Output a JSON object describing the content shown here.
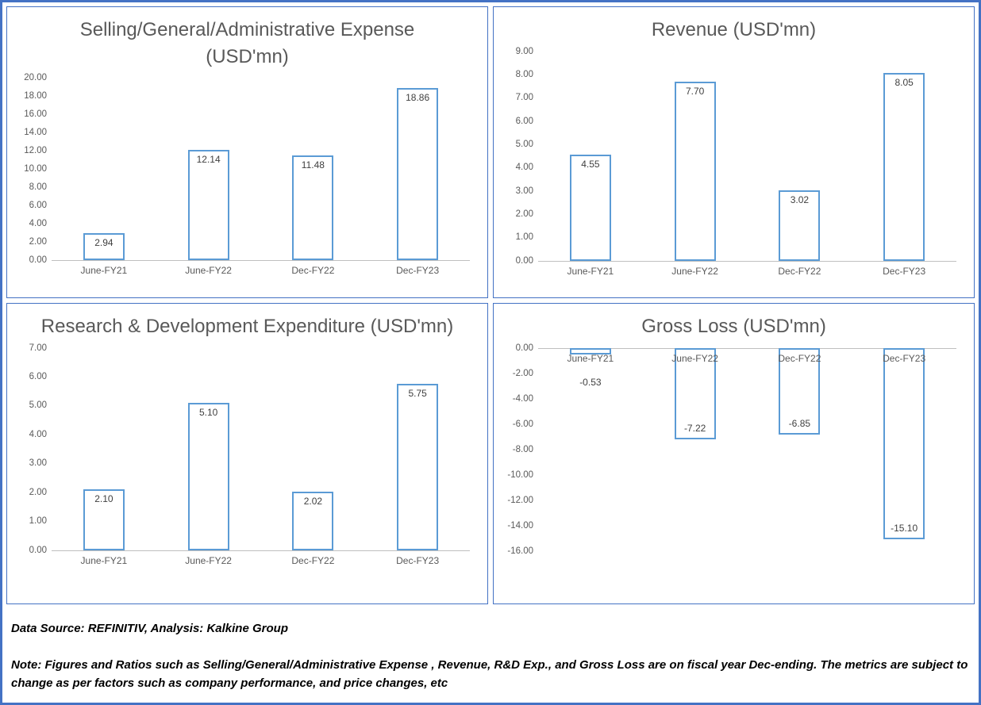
{
  "page": {
    "footer": {
      "source": "Data Source: REFINITIV, Analysis: Kalkine Group",
      "note": "Note: Figures and Ratios such as Selling/General/Administrative Expense , Revenue, R&D Exp., and Gross Loss are on fiscal year Dec-ending. The metrics are subject to change as per factors such as company performance, and price changes, etc"
    },
    "colors": {
      "outer_border": "#4472C4",
      "panel_border": "#4472C4",
      "bar_border": "#5B9BD5",
      "bar_fill": "#FFFFFF",
      "title_color": "#595959",
      "axis_text": "#595959",
      "label_color": "#404040"
    }
  },
  "chart_data": [
    {
      "type": "bar",
      "title": "Selling/General/Administrative Expense (USD'mn)",
      "categories": [
        "June-FY21",
        "June-FY22",
        "Dec-FY22",
        "Dec-FY23"
      ],
      "values": [
        2.94,
        12.14,
        11.48,
        18.86
      ],
      "ylim": [
        0,
        20
      ],
      "ytick_step": 2,
      "grid": false,
      "legend": "none",
      "data_labels": "inside-end"
    },
    {
      "type": "bar",
      "title": "Revenue (USD'mn)",
      "categories": [
        "June-FY21",
        "June-FY22",
        "Dec-FY22",
        "Dec-FY23"
      ],
      "values": [
        4.55,
        7.7,
        3.02,
        8.05
      ],
      "ylim": [
        0,
        9
      ],
      "ytick_step": 1,
      "grid": false,
      "legend": "none",
      "data_labels": "inside-end"
    },
    {
      "type": "bar",
      "title": "Research & Development Expenditure (USD'mn)",
      "categories": [
        "June-FY21",
        "June-FY22",
        "Dec-FY22",
        "Dec-FY23"
      ],
      "values": [
        2.1,
        5.1,
        2.02,
        5.75
      ],
      "ylim": [
        0,
        7
      ],
      "ytick_step": 1,
      "grid": false,
      "legend": "none",
      "data_labels": "inside-end"
    },
    {
      "type": "bar",
      "title": "Gross Loss (USD'mn)",
      "categories": [
        "June-FY21",
        "June-FY22",
        "Dec-FY22",
        "Dec-FY23"
      ],
      "values": [
        -0.53,
        -7.22,
        -6.85,
        -15.1
      ],
      "ylim": [
        -16,
        0
      ],
      "ytick_step": 2,
      "grid": false,
      "legend": "none",
      "data_labels": "inside-end"
    }
  ]
}
